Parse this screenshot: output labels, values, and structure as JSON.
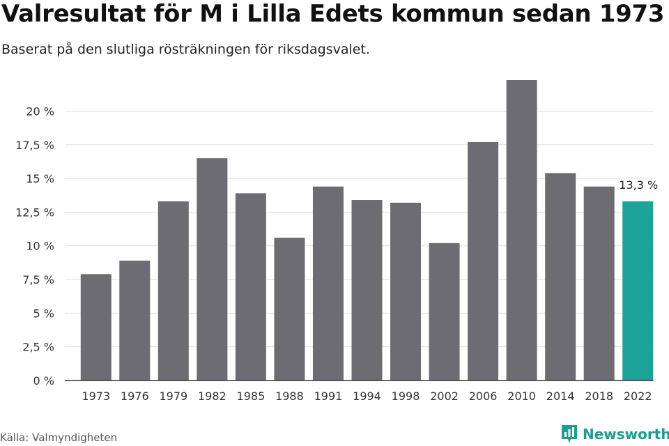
{
  "header": {
    "title": "Valresultat för M i Lilla Edets kommun sedan 1973",
    "subtitle": "Baserat på den slutliga rösträkningen för riksdagsvalet."
  },
  "footer": {
    "source": "Källa: Valmyndigheten",
    "brand": "Newsworthy",
    "brand_icon": "newsworthy-logo-icon"
  },
  "colors": {
    "bar": "#6d6c72",
    "highlight": "#1aa396",
    "grid": "#dddddd",
    "axis": "#333333",
    "brand": "#1a9e8f"
  },
  "chart_data": {
    "type": "bar",
    "categories": [
      "1973",
      "1976",
      "1979",
      "1982",
      "1985",
      "1988",
      "1991",
      "1994",
      "1998",
      "2002",
      "2006",
      "2010",
      "2014",
      "2018",
      "2022"
    ],
    "values": [
      7.9,
      8.9,
      13.3,
      16.5,
      13.9,
      10.6,
      14.4,
      13.4,
      13.2,
      10.2,
      17.7,
      22.3,
      15.4,
      14.4,
      13.3
    ],
    "highlight_index": 14,
    "data_labels": [
      {
        "index": 14,
        "text": "13,3 %"
      }
    ],
    "yticks": [
      0,
      2.5,
      5,
      7.5,
      10,
      12.5,
      15,
      17.5,
      20
    ],
    "ytick_labels": [
      "0 %",
      "2,5 %",
      "5 %",
      "7,5 %",
      "10 %",
      "12,5 %",
      "15 %",
      "17,5 %",
      "20 %"
    ],
    "ylim": [
      0,
      22.3
    ],
    "grid": true,
    "legend": "none",
    "xlabel": "",
    "ylabel": ""
  }
}
